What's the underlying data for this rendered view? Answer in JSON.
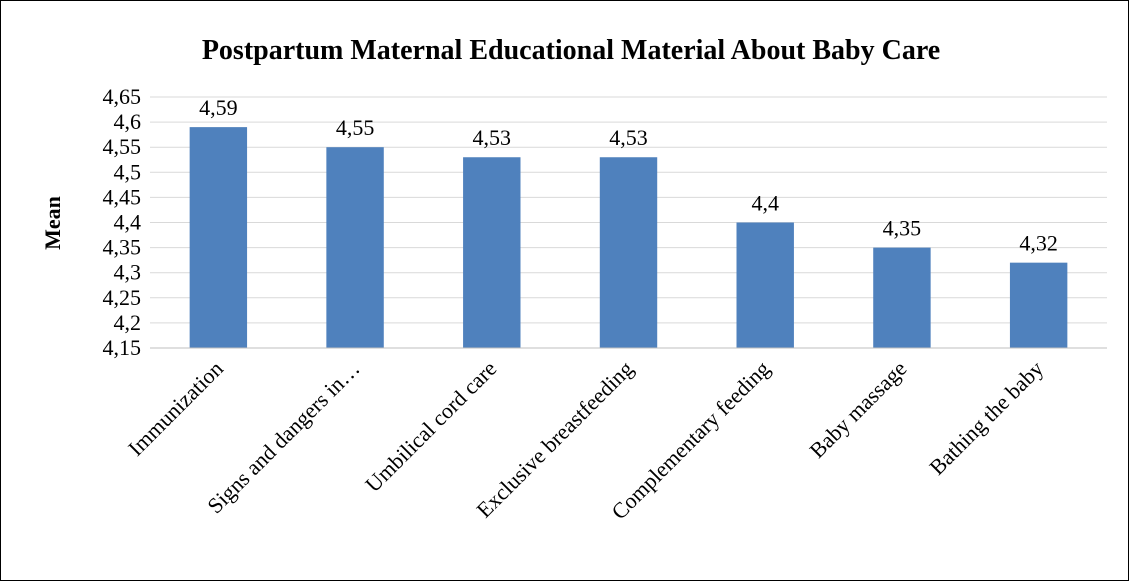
{
  "chart_data": {
    "type": "bar",
    "title": "Postpartum Maternal Educational Material About Baby Care",
    "xlabel": "",
    "ylabel": "Mean",
    "categories": [
      "Immunization",
      "Signs and dangers in…",
      "Umbilical cord care",
      "Exclusive breastfeeding",
      "Complementary feeding",
      "Baby massage",
      "Bathing the baby"
    ],
    "values": [
      4.59,
      4.55,
      4.53,
      4.53,
      4.4,
      4.35,
      4.32
    ],
    "value_labels": [
      "4,59",
      "4,55",
      "4,53",
      "4,53",
      "4,4",
      "4,35",
      "4,32"
    ],
    "ylim": [
      4.15,
      4.65
    ],
    "yticks": [
      4.15,
      4.2,
      4.25,
      4.3,
      4.35,
      4.4,
      4.45,
      4.5,
      4.55,
      4.6,
      4.65
    ],
    "ytick_labels": [
      "4,15",
      "4,2",
      "4,25",
      "4,3",
      "4,35",
      "4,4",
      "4,45",
      "4,5",
      "4,55",
      "4,6",
      "4,65"
    ],
    "grid": true,
    "legend": "none",
    "bar_color": "#4f81bd",
    "grid_color": "#d9d9d9",
    "axis_color": "#bfbfbf"
  }
}
